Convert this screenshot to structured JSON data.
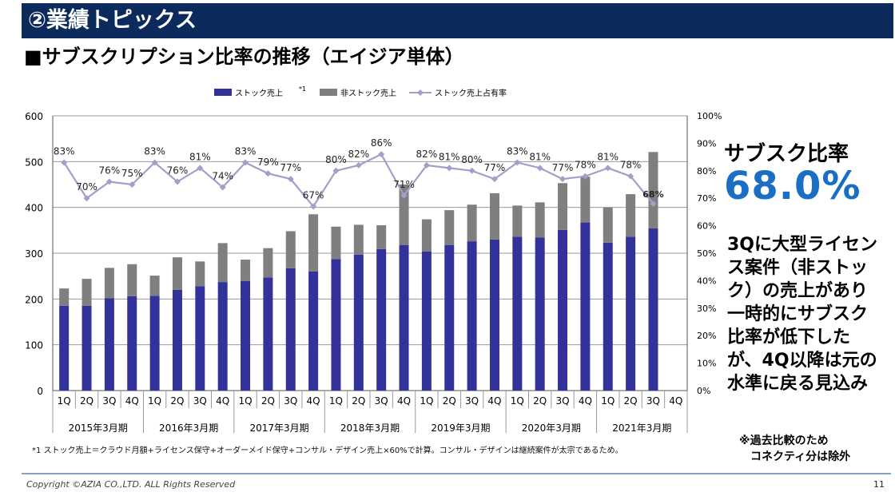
{
  "header": {
    "title": "②業績トピックス"
  },
  "subtitle": "■サブスクリプション比率の推移（エイジア単体）",
  "side_panel": {
    "label": "サブスク比率",
    "value": "68.0%",
    "comment": "3Qに大型ライセンス案件（非ストック）の売上があり一時的にサブスク比率が低下したが、4Q以降は元の水準に戻る見込み",
    "note": "※過去比較のため\n　コネクティ分は除外"
  },
  "footnote": "*1 ストック売上＝クラウド月額+ライセンス保守+オーダーメイド保守+コンサル・デザイン売上×60%で計算。コンサル・デザインは継続案件が太宗であるため。",
  "footer": {
    "copyright": "Copyright ©AZIA CO.,LTD. ALL Rights Reserved",
    "page": "11"
  },
  "colors": {
    "stock": "#33329a",
    "nonstock": "#7f7f7f",
    "ratio": "#a89cc8",
    "title_bar": "#0d2a5c",
    "accent": "#1a6fc4"
  },
  "chart_data": {
    "type": "bar",
    "stacked": true,
    "legend_position": "top",
    "categories": [
      "1Q",
      "2Q",
      "3Q",
      "4Q",
      "1Q",
      "2Q",
      "3Q",
      "4Q",
      "1Q",
      "2Q",
      "3Q",
      "4Q",
      "1Q",
      "2Q",
      "3Q",
      "4Q",
      "1Q",
      "2Q",
      "3Q",
      "4Q",
      "1Q",
      "2Q",
      "3Q",
      "4Q",
      "1Q",
      "2Q",
      "3Q",
      "4Q"
    ],
    "groups": [
      "2015年3月期",
      "2016年3月期",
      "2017年3月期",
      "2018年3月期",
      "2019年3月期",
      "2020年3月期",
      "2021年3月期"
    ],
    "series": [
      {
        "name": "ストック売上",
        "name_sup": "*1",
        "type": "bar",
        "values": [
          185,
          185,
          202,
          206,
          207,
          220,
          228,
          237,
          239,
          247,
          267,
          260,
          287,
          297,
          309,
          318,
          304,
          318,
          326,
          330,
          336,
          334,
          351,
          367,
          323,
          336,
          354,
          null
        ]
      },
      {
        "name": "非ストック売上",
        "type": "bar",
        "values": [
          38,
          59,
          66,
          70,
          44,
          71,
          54,
          85,
          47,
          64,
          81,
          125,
          71,
          65,
          52,
          132,
          70,
          76,
          80,
          101,
          68,
          77,
          102,
          100,
          77,
          93,
          167,
          null
        ]
      },
      {
        "name": "ストック売上占有率",
        "type": "line",
        "axis": "right",
        "values": [
          83,
          70,
          76,
          75,
          83,
          76,
          81,
          74,
          83,
          79,
          77,
          67,
          80,
          82,
          86,
          71,
          82,
          81,
          80,
          77,
          83,
          81,
          77,
          78,
          81,
          78,
          68,
          null
        ],
        "labels": [
          "83%",
          "70%",
          "76%",
          "75%",
          "83%",
          "76%",
          "81%",
          "74%",
          "83%",
          "79%",
          "77%",
          "67%",
          "80%",
          "82%",
          "86%",
          "71%",
          "82%",
          "81%",
          "80%",
          "77%",
          "83%",
          "81%",
          "77%",
          "78%",
          "81%",
          "78%",
          "68%",
          ""
        ]
      }
    ],
    "y_left": {
      "min": 0,
      "max": 600,
      "ticks": [
        "0",
        "100",
        "200",
        "300",
        "400",
        "500",
        "600"
      ]
    },
    "y_right": {
      "min": 0,
      "max": 100,
      "ticks": [
        "0%",
        "10%",
        "20%",
        "30%",
        "40%",
        "50%",
        "60%",
        "70%",
        "80%",
        "90%",
        "100%"
      ]
    },
    "grid": true
  }
}
